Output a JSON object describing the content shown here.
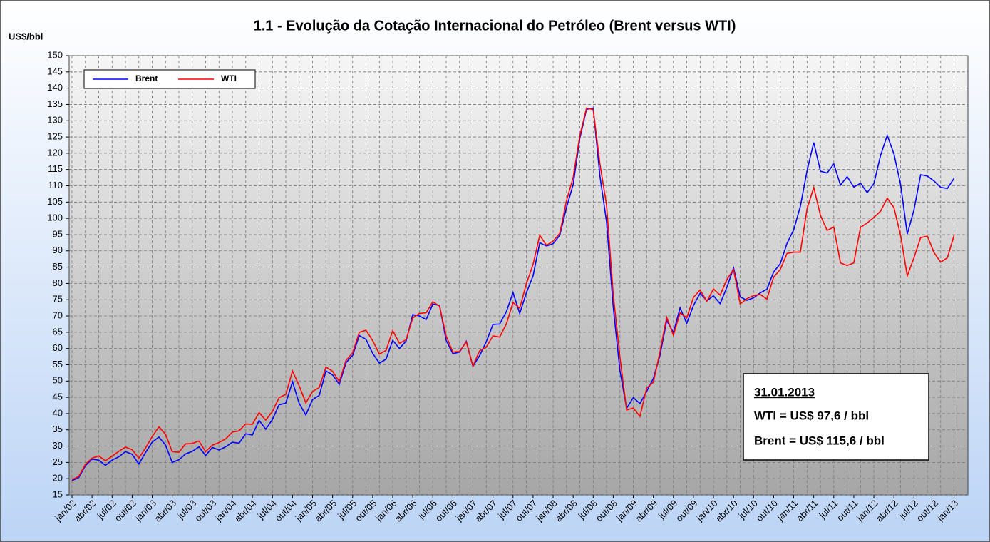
{
  "chart_data": {
    "type": "line",
    "title": "1.1 - Evolução da Cotação Internacional do Petróleo (Brent versus WTI)",
    "y_label": "US$/bbl",
    "ylim": [
      15,
      150
    ],
    "yticks": [
      15,
      20,
      25,
      30,
      35,
      40,
      45,
      50,
      55,
      60,
      65,
      70,
      75,
      80,
      85,
      90,
      95,
      100,
      105,
      110,
      115,
      120,
      125,
      130,
      135,
      140,
      145,
      150
    ],
    "grid": true,
    "legend": "top-left",
    "categories": [
      "jan/02",
      null,
      null,
      "abr/02",
      null,
      null,
      "jul/02",
      null,
      null,
      "out/02",
      null,
      null,
      "jan/03",
      null,
      null,
      "abr/03",
      null,
      null,
      "jul/03",
      null,
      null,
      "out/03",
      null,
      null,
      "jan/04",
      null,
      null,
      "abr/04",
      null,
      null,
      "jul/04",
      null,
      null,
      "out/04",
      null,
      null,
      "jan/05",
      null,
      null,
      "abr/05",
      null,
      null,
      "jul/05",
      null,
      null,
      "out/05",
      null,
      null,
      "jan/06",
      null,
      null,
      "abr/06",
      null,
      null,
      "jul/06",
      null,
      null,
      "out/06",
      null,
      null,
      "jan/07",
      null,
      null,
      "abr/07",
      null,
      null,
      "jul/07",
      null,
      null,
      "out/07",
      null,
      null,
      "jan/08",
      null,
      null,
      "abr/08",
      null,
      null,
      "jul/08",
      null,
      null,
      "out/08",
      null,
      null,
      "jan/09",
      null,
      null,
      "abr/09",
      null,
      null,
      "jul/09",
      null,
      null,
      "out/09",
      null,
      null,
      "jan/10",
      null,
      null,
      "abr/10",
      null,
      null,
      "jul/10",
      null,
      null,
      "out/10",
      null,
      null,
      "jan/11",
      null,
      null,
      "abr/11",
      null,
      null,
      "jul/11",
      null,
      null,
      "out/11",
      null,
      null,
      "jan/12",
      null,
      null,
      "abr/12",
      null,
      null,
      "jul/12",
      null,
      null,
      "out/12",
      null,
      null,
      "jan/13"
    ],
    "series": [
      {
        "name": "Brent",
        "color": "#0000ff",
        "values": [
          19.4,
          20.3,
          24,
          26,
          25.7,
          24.1,
          25.7,
          26.7,
          28.3,
          27.5,
          24.5,
          28,
          31.2,
          32.8,
          30.3,
          25,
          25.8,
          27.6,
          28.4,
          29.8,
          27.1,
          29.6,
          28.8,
          29.8,
          31.2,
          30.9,
          33.8,
          33.4,
          37.9,
          35.2,
          38.2,
          42.7,
          43.2,
          49.8,
          43.1,
          39.6,
          44.3,
          45.6,
          53.1,
          51.9,
          49,
          55.6,
          57.9,
          64,
          62.8,
          58.5,
          55.5,
          56.7,
          62.5,
          60,
          62.3,
          70.4,
          70,
          68.9,
          73.7,
          73.2,
          62.5,
          58.4,
          58.9,
          62.2,
          54.5,
          57.8,
          62.1,
          67.4,
          67.5,
          71.3,
          77.2,
          70.8,
          77.1,
          82.3,
          92.5,
          91.5,
          92.2,
          94.8,
          103.3,
          110.4,
          124.6,
          133.5,
          133.9,
          113,
          99,
          72.8,
          53.2,
          41.6,
          44.9,
          43.1,
          46.8,
          50.8,
          57.9,
          68.6,
          64.9,
          72.5,
          67.7,
          73.2,
          77,
          74.7,
          76.2,
          73.8,
          78.8,
          84.8,
          75.9,
          74.8,
          75.6,
          77.1,
          78.2,
          83.5,
          86.1,
          92.3,
          96.5,
          103.7,
          114.6,
          123.3,
          114.5,
          113.9,
          116.7,
          110.2,
          112.8,
          109.6,
          110.8,
          107.9,
          110.7,
          119.3,
          125.5,
          119.8,
          110.3,
          95.2,
          102.6,
          113.4,
          113,
          111.5,
          109.5,
          109.2,
          112.3
        ]
      },
      {
        "name": "WTI",
        "color": "#ff0000",
        "values": [
          19.7,
          20.7,
          24.4,
          26.3,
          27,
          25.5,
          26.9,
          28.4,
          29.7,
          28.9,
          26.3,
          29.4,
          32.9,
          35.9,
          33.6,
          28.3,
          28.1,
          30.7,
          30.8,
          31.6,
          28.3,
          30.3,
          31.1,
          32.2,
          34.3,
          34.7,
          36.8,
          36.7,
          40.3,
          38,
          40.7,
          44.9,
          45.9,
          53.1,
          48.5,
          43.3,
          46.8,
          48,
          54.3,
          53,
          49.8,
          56.3,
          58.7,
          65,
          65.6,
          62.4,
          58.3,
          59.4,
          65.5,
          61.6,
          62.7,
          69.4,
          70.8,
          71,
          74.4,
          73,
          63.8,
          58.9,
          59.1,
          62,
          54.6,
          59.3,
          60.4,
          63.9,
          63.5,
          67.5,
          74.1,
          72.4,
          79.9,
          85.8,
          94.8,
          91.7,
          93,
          95.4,
          105.4,
          112.6,
          125.4,
          133.9,
          133.4,
          116.7,
          104.1,
          76.6,
          57.3,
          41.1,
          41.7,
          39.1,
          47.9,
          49.6,
          59,
          69.6,
          64.1,
          71,
          69.4,
          75.7,
          78,
          74.5,
          78.3,
          76.4,
          81.2,
          84.3,
          73.7,
          75.3,
          76.3,
          76.6,
          75.2,
          81.9,
          84.3,
          89.2,
          89.6,
          89.6,
          102.9,
          109.5,
          100.9,
          96.3,
          97.3,
          86.3,
          85.5,
          86.3,
          97.2,
          98.6,
          100.3,
          102.2,
          106.2,
          103.3,
          94.7,
          82.3,
          87.9,
          94.1,
          94.5,
          89.5,
          86.5,
          87.9,
          94.8
        ]
      }
    ],
    "annotation": {
      "date": "31.01.2013",
      "wti": "WTI = US$ 97,6 / bbl",
      "brent": "Brent = US$ 115,6 / bbl"
    }
  }
}
